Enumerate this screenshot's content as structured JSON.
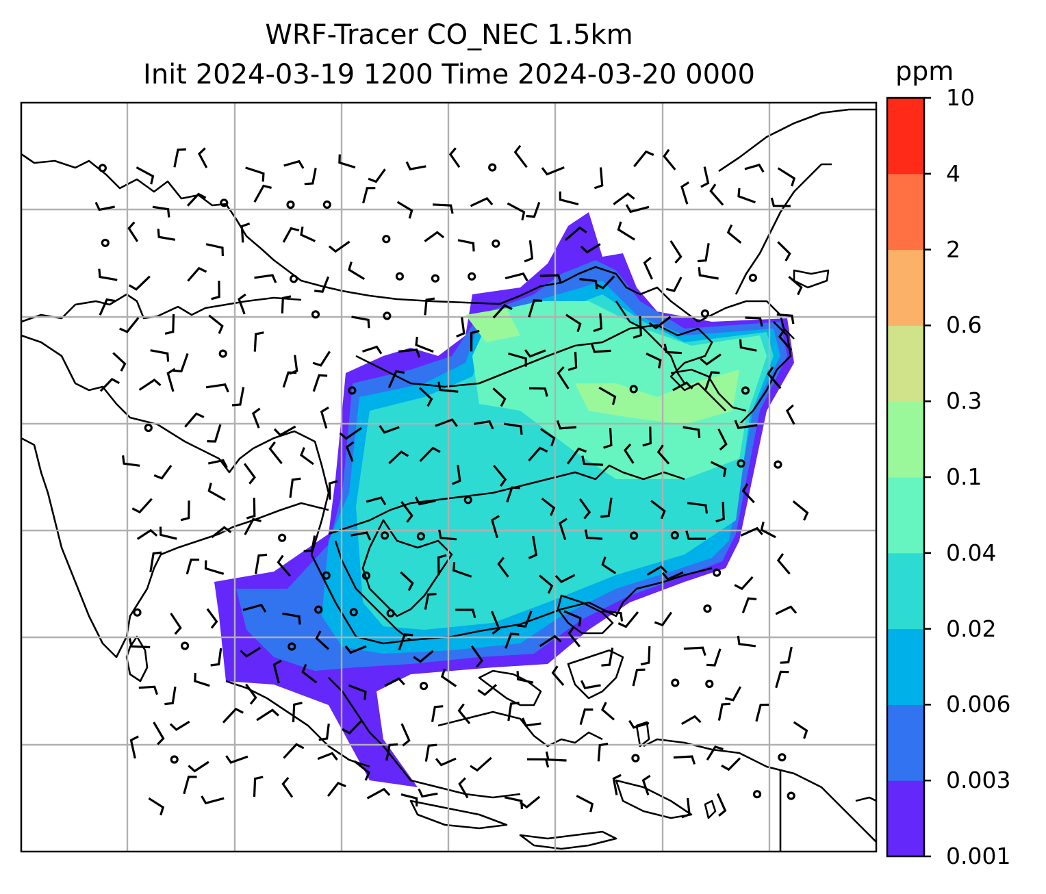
{
  "title": {
    "line1": "WRF-Tracer CO_NEC 1.5km",
    "line2": "Init 2024-03-19 1200 Time 2024-03-20 0000"
  },
  "colorbar": {
    "unit": "ppm",
    "levels": [
      "0.001",
      "0.003",
      "0.006",
      "0.02",
      "0.04",
      "0.1",
      "0.3",
      "0.6",
      "2",
      "4",
      "10"
    ],
    "colors": [
      "#6428fa",
      "#3273f0",
      "#00b0e8",
      "#2ddbd3",
      "#66f5c1",
      "#9af89b",
      "#d0e38a",
      "#fbb168",
      "#ff7042",
      "#ff2a18"
    ]
  }
}
